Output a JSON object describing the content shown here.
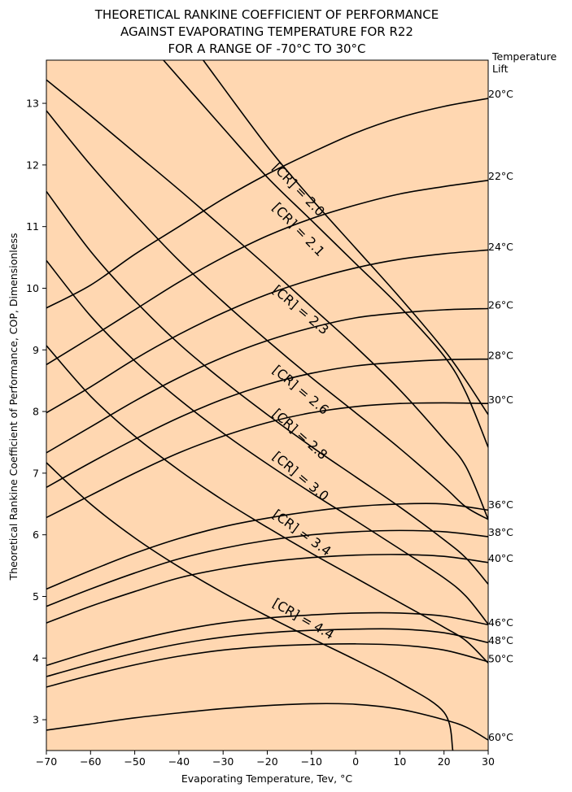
{
  "chart_data": {
    "type": "line",
    "title": [
      "THEORETICAL RANKINE COEFFICIENT OF PERFORMANCE",
      "AGAINST EVAPORATING TEMPERATURE FOR R22",
      "FOR A RANGE OF -70°C TO 30°C"
    ],
    "xlabel": "Evaporating Temperature, Tev, °C",
    "ylabel": "Theoretical Rankine Coefficient of Performance, COP, Dimensionless",
    "xlim": [
      -70,
      30
    ],
    "ylim": [
      2.5,
      13.7
    ],
    "x_ticks": [
      -70,
      -60,
      -50,
      -40,
      -30,
      -20,
      -10,
      0,
      10,
      20,
      30
    ],
    "y_ticks": [
      3,
      4,
      5,
      6,
      7,
      8,
      9,
      10,
      11,
      12,
      13
    ],
    "background_color": "#ffd7b1",
    "line_color": "#000000",
    "lift_legend_title": [
      "Temperature",
      "Lift"
    ],
    "lift_series": [
      {
        "name": "20°C",
        "points": [
          [
            -70,
            9.68
          ],
          [
            -60,
            10.05
          ],
          [
            -50,
            10.55
          ],
          [
            -40,
            11.0
          ],
          [
            -30,
            11.45
          ],
          [
            -20,
            11.85
          ],
          [
            -10,
            12.2
          ],
          [
            0,
            12.52
          ],
          [
            10,
            12.77
          ],
          [
            20,
            12.95
          ],
          [
            30,
            13.08
          ]
        ]
      },
      {
        "name": "22°C",
        "points": [
          [
            -70,
            8.76
          ],
          [
            -60,
            9.2
          ],
          [
            -50,
            9.65
          ],
          [
            -40,
            10.1
          ],
          [
            -30,
            10.5
          ],
          [
            -20,
            10.85
          ],
          [
            -10,
            11.13
          ],
          [
            0,
            11.35
          ],
          [
            10,
            11.53
          ],
          [
            20,
            11.65
          ],
          [
            30,
            11.75
          ]
        ]
      },
      {
        "name": "24°C",
        "points": [
          [
            -70,
            7.98
          ],
          [
            -60,
            8.4
          ],
          [
            -50,
            8.85
          ],
          [
            -40,
            9.25
          ],
          [
            -30,
            9.6
          ],
          [
            -20,
            9.9
          ],
          [
            -10,
            10.14
          ],
          [
            0,
            10.33
          ],
          [
            10,
            10.47
          ],
          [
            20,
            10.56
          ],
          [
            30,
            10.62
          ]
        ]
      },
      {
        "name": "26°C",
        "points": [
          [
            -70,
            7.33
          ],
          [
            -60,
            7.75
          ],
          [
            -50,
            8.17
          ],
          [
            -40,
            8.55
          ],
          [
            -30,
            8.88
          ],
          [
            -20,
            9.15
          ],
          [
            -10,
            9.36
          ],
          [
            0,
            9.52
          ],
          [
            10,
            9.6
          ],
          [
            20,
            9.65
          ],
          [
            30,
            9.67
          ]
        ]
      },
      {
        "name": "28°C",
        "points": [
          [
            -70,
            6.77
          ],
          [
            -60,
            7.17
          ],
          [
            -50,
            7.55
          ],
          [
            -40,
            7.9
          ],
          [
            -30,
            8.2
          ],
          [
            -20,
            8.44
          ],
          [
            -10,
            8.62
          ],
          [
            0,
            8.74
          ],
          [
            10,
            8.8
          ],
          [
            20,
            8.84
          ],
          [
            30,
            8.85
          ]
        ]
      },
      {
        "name": "30°C",
        "points": [
          [
            -70,
            6.28
          ],
          [
            -60,
            6.64
          ],
          [
            -50,
            7.0
          ],
          [
            -40,
            7.33
          ],
          [
            -30,
            7.6
          ],
          [
            -20,
            7.82
          ],
          [
            -10,
            7.98
          ],
          [
            0,
            8.08
          ],
          [
            10,
            8.13
          ],
          [
            20,
            8.14
          ],
          [
            30,
            8.13
          ]
        ]
      },
      {
        "name": "36°C",
        "points": [
          [
            -70,
            5.12
          ],
          [
            -60,
            5.42
          ],
          [
            -50,
            5.7
          ],
          [
            -40,
            5.94
          ],
          [
            -30,
            6.13
          ],
          [
            -20,
            6.27
          ],
          [
            -10,
            6.38
          ],
          [
            0,
            6.46
          ],
          [
            10,
            6.5
          ],
          [
            20,
            6.5
          ],
          [
            30,
            6.4
          ]
        ]
      },
      {
        "name": "38°C",
        "points": [
          [
            -70,
            4.84
          ],
          [
            -60,
            5.12
          ],
          [
            -50,
            5.38
          ],
          [
            -40,
            5.61
          ],
          [
            -30,
            5.78
          ],
          [
            -20,
            5.91
          ],
          [
            -10,
            6.0
          ],
          [
            0,
            6.05
          ],
          [
            10,
            6.07
          ],
          [
            20,
            6.05
          ],
          [
            30,
            5.97
          ]
        ]
      },
      {
        "name": "40°C",
        "points": [
          [
            -70,
            4.57
          ],
          [
            -60,
            4.84
          ],
          [
            -50,
            5.08
          ],
          [
            -40,
            5.3
          ],
          [
            -30,
            5.45
          ],
          [
            -20,
            5.56
          ],
          [
            -10,
            5.63
          ],
          [
            0,
            5.67
          ],
          [
            10,
            5.68
          ],
          [
            20,
            5.65
          ],
          [
            30,
            5.55
          ]
        ]
      },
      {
        "name": "46°C",
        "points": [
          [
            -70,
            3.88
          ],
          [
            -60,
            4.1
          ],
          [
            -50,
            4.29
          ],
          [
            -40,
            4.45
          ],
          [
            -30,
            4.57
          ],
          [
            -20,
            4.65
          ],
          [
            -10,
            4.7
          ],
          [
            0,
            4.73
          ],
          [
            10,
            4.73
          ],
          [
            20,
            4.68
          ],
          [
            30,
            4.54
          ]
        ]
      },
      {
        "name": "48°C",
        "points": [
          [
            -70,
            3.7
          ],
          [
            -60,
            3.9
          ],
          [
            -50,
            4.08
          ],
          [
            -40,
            4.23
          ],
          [
            -30,
            4.34
          ],
          [
            -20,
            4.41
          ],
          [
            -10,
            4.45
          ],
          [
            0,
            4.47
          ],
          [
            10,
            4.47
          ],
          [
            20,
            4.41
          ],
          [
            30,
            4.25
          ]
        ]
      },
      {
        "name": "50°C",
        "points": [
          [
            -70,
            3.53
          ],
          [
            -60,
            3.72
          ],
          [
            -50,
            3.89
          ],
          [
            -40,
            4.03
          ],
          [
            -30,
            4.13
          ],
          [
            -20,
            4.19
          ],
          [
            -10,
            4.22
          ],
          [
            0,
            4.23
          ],
          [
            10,
            4.21
          ],
          [
            20,
            4.13
          ],
          [
            30,
            3.94
          ]
        ]
      },
      {
        "name": "60°C",
        "points": [
          [
            -70,
            2.83
          ],
          [
            -60,
            2.93
          ],
          [
            -50,
            3.03
          ],
          [
            -40,
            3.11
          ],
          [
            -30,
            3.18
          ],
          [
            -20,
            3.23
          ],
          [
            -10,
            3.26
          ],
          [
            0,
            3.25
          ],
          [
            10,
            3.17
          ],
          [
            20,
            3.0
          ],
          [
            25,
            2.88
          ],
          [
            30,
            2.67
          ]
        ]
      }
    ],
    "cr_series": [
      {
        "name": "[CR] = 2.0",
        "points": [
          [
            -43.5,
            13.7
          ],
          [
            -30,
            12.6
          ],
          [
            -20,
            11.8
          ],
          [
            -10,
            11.1
          ],
          [
            0,
            10.4
          ],
          [
            10,
            9.7
          ],
          [
            20,
            8.9
          ],
          [
            25,
            8.3
          ],
          [
            30,
            7.42
          ]
        ]
      },
      {
        "name": "[CR] = 2.1",
        "points": [
          [
            -34.5,
            13.7
          ],
          [
            -20,
            12.3
          ],
          [
            -10,
            11.45
          ],
          [
            0,
            10.65
          ],
          [
            10,
            9.85
          ],
          [
            20,
            9.0
          ],
          [
            25,
            8.5
          ],
          [
            30,
            7.95
          ]
        ]
      },
      {
        "name": "[CR] = 2.3",
        "points": [
          [
            -70,
            13.38
          ],
          [
            -60,
            12.8
          ],
          [
            -50,
            12.2
          ],
          [
            -40,
            11.6
          ],
          [
            -30,
            10.98
          ],
          [
            -20,
            10.35
          ],
          [
            -10,
            9.7
          ],
          [
            0,
            9.05
          ],
          [
            10,
            8.35
          ],
          [
            20,
            7.55
          ],
          [
            25,
            7.1
          ],
          [
            30,
            6.25
          ]
        ]
      },
      {
        "name": "[CR] = 2.6",
        "points": [
          [
            -70,
            12.88
          ],
          [
            -60,
            12.0
          ],
          [
            -50,
            11.2
          ],
          [
            -40,
            10.45
          ],
          [
            -30,
            9.78
          ],
          [
            -20,
            9.15
          ],
          [
            -10,
            8.55
          ],
          [
            0,
            7.98
          ],
          [
            10,
            7.4
          ],
          [
            20,
            6.78
          ],
          [
            25,
            6.45
          ],
          [
            30,
            6.25
          ]
        ]
      },
      {
        "name": "[CR] = 2.8",
        "points": [
          [
            -70,
            11.57
          ],
          [
            -60,
            10.6
          ],
          [
            -50,
            9.8
          ],
          [
            -40,
            9.1
          ],
          [
            -30,
            8.5
          ],
          [
            -20,
            7.95
          ],
          [
            -10,
            7.43
          ],
          [
            0,
            6.94
          ],
          [
            10,
            6.45
          ],
          [
            20,
            5.92
          ],
          [
            25,
            5.62
          ],
          [
            30,
            5.2
          ]
        ]
      },
      {
        "name": "[CR] = 3.0",
        "points": [
          [
            -70,
            10.45
          ],
          [
            -60,
            9.55
          ],
          [
            -50,
            8.82
          ],
          [
            -40,
            8.2
          ],
          [
            -30,
            7.65
          ],
          [
            -20,
            7.15
          ],
          [
            -10,
            6.68
          ],
          [
            0,
            6.23
          ],
          [
            10,
            5.77
          ],
          [
            20,
            5.3
          ],
          [
            25,
            5.0
          ],
          [
            30,
            4.55
          ]
        ]
      },
      {
        "name": "[CR] = 3.4",
        "points": [
          [
            -70,
            9.07
          ],
          [
            -60,
            8.25
          ],
          [
            -50,
            7.6
          ],
          [
            -40,
            7.05
          ],
          [
            -30,
            6.56
          ],
          [
            -20,
            6.12
          ],
          [
            -10,
            5.7
          ],
          [
            0,
            5.3
          ],
          [
            10,
            4.9
          ],
          [
            20,
            4.5
          ],
          [
            25,
            4.28
          ],
          [
            30,
            3.92
          ]
        ]
      },
      {
        "name": "[CR] = 4.4",
        "points": [
          [
            -70,
            7.17
          ],
          [
            -60,
            6.5
          ],
          [
            -50,
            5.95
          ],
          [
            -40,
            5.48
          ],
          [
            -30,
            5.06
          ],
          [
            -20,
            4.68
          ],
          [
            -10,
            4.32
          ],
          [
            0,
            3.97
          ],
          [
            10,
            3.6
          ],
          [
            20,
            3.12
          ],
          [
            22,
            2.5
          ]
        ]
      }
    ],
    "cr_labels": [
      {
        "text": "[CR] = 2.0",
        "x": -19,
        "y": 11.95,
        "angle": 46
      },
      {
        "text": "[CR] = 2.1",
        "x": -19,
        "y": 11.3,
        "angle": 46
      },
      {
        "text": "[CR] = 2.3",
        "x": -19,
        "y": 9.95,
        "angle": 40
      },
      {
        "text": "[CR] = 2.6",
        "x": -19,
        "y": 8.65,
        "angle": 40
      },
      {
        "text": "[CR] = 2.8",
        "x": -19,
        "y": 7.95,
        "angle": 42
      },
      {
        "text": "[CR] = 3.0",
        "x": -19,
        "y": 7.25,
        "angle": 40
      },
      {
        "text": "[CR] = 3.4",
        "x": -19,
        "y": 6.3,
        "angle": 36
      },
      {
        "text": "[CR] = 4.4",
        "x": -19,
        "y": 4.85,
        "angle": 30
      }
    ],
    "lift_labels": [
      {
        "text": "20°C",
        "y": 13.15
      },
      {
        "text": "22°C",
        "y": 11.82
      },
      {
        "text": "24°C",
        "y": 10.67
      },
      {
        "text": "26°C",
        "y": 9.73
      },
      {
        "text": "28°C",
        "y": 8.91
      },
      {
        "text": "30°C",
        "y": 8.19
      },
      {
        "text": "36°C",
        "y": 6.49
      },
      {
        "text": "38°C",
        "y": 6.04
      },
      {
        "text": "40°C",
        "y": 5.62
      },
      {
        "text": "46°C",
        "y": 4.58
      },
      {
        "text": "48°C",
        "y": 4.29
      },
      {
        "text": "50°C",
        "y": 3.99
      },
      {
        "text": "60°C",
        "y": 2.72
      }
    ]
  }
}
